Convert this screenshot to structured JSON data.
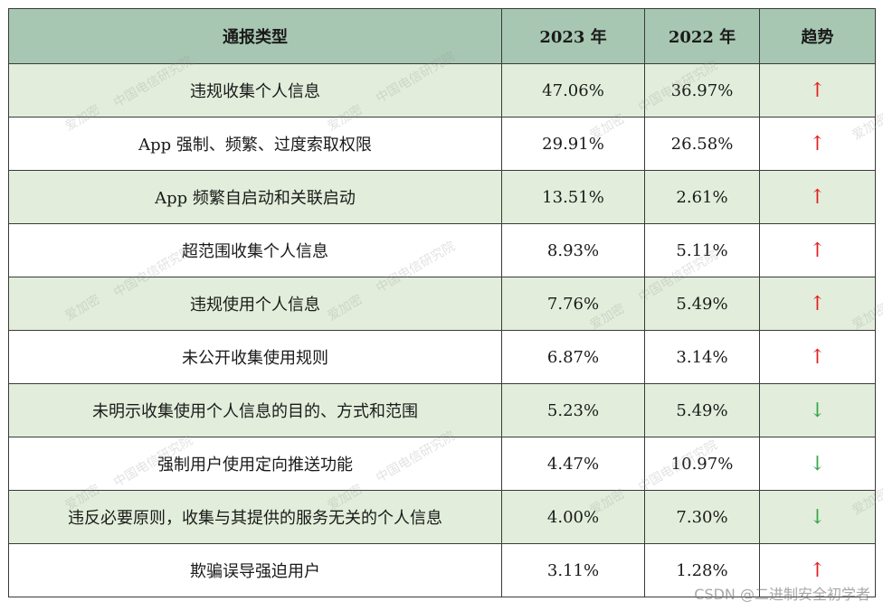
{
  "table": {
    "headers": [
      "通报类型",
      "2023 年",
      "2022 年",
      "趋势"
    ],
    "rows": [
      {
        "type": "违规收集个人信息",
        "y2023": "47.06%",
        "y2022": "36.97%",
        "trend": "↑",
        "dir": "up"
      },
      {
        "type": "App 强制、频繁、过度索取权限",
        "y2023": "29.91%",
        "y2022": "26.58%",
        "trend": "↑",
        "dir": "up"
      },
      {
        "type": "App 频繁自启动和关联启动",
        "y2023": "13.51%",
        "y2022": "2.61%",
        "trend": "↑",
        "dir": "up"
      },
      {
        "type": "超范围收集个人信息",
        "y2023": "8.93%",
        "y2022": "5.11%",
        "trend": "↑",
        "dir": "up"
      },
      {
        "type": "违规使用个人信息",
        "y2023": "7.76%",
        "y2022": "5.49%",
        "trend": "↑",
        "dir": "up"
      },
      {
        "type": "未公开收集使用规则",
        "y2023": "6.87%",
        "y2022": "3.14%",
        "trend": "↑",
        "dir": "up"
      },
      {
        "type": "未明示收集使用个人信息的目的、方式和范围",
        "y2023": "5.23%",
        "y2022": "5.49%",
        "trend": "↓",
        "dir": "down"
      },
      {
        "type": "强制用户使用定向推送功能",
        "y2023": "4.47%",
        "y2022": "10.97%",
        "trend": "↓",
        "dir": "down"
      },
      {
        "type": "违反必要原则，收集与其提供的服务无关的个人信息",
        "y2023": "4.00%",
        "y2022": "7.30%",
        "trend": "↓",
        "dir": "down"
      },
      {
        "type": "欺骗误导强迫用户",
        "y2023": "3.11%",
        "y2022": "1.28%",
        "trend": "↑",
        "dir": "up"
      }
    ]
  },
  "watermark": {
    "text_a": "爱加密",
    "text_b": "中国电信研究院"
  },
  "footer": {
    "credit": "CSDN @二进制安全初学者"
  },
  "colors": {
    "header_bg": "#a7c7b2",
    "shaded_row_bg": "#e2eedb",
    "up_arrow": "#e02020",
    "down_arrow": "#3aa54a"
  }
}
